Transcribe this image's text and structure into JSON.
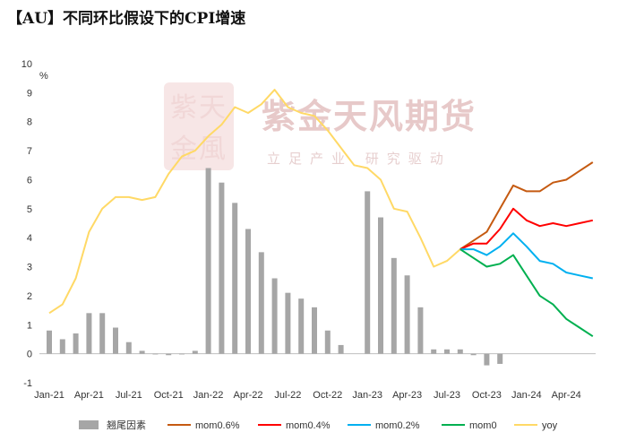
{
  "title": "【AU】不同环比假设下的CPI增速",
  "watermark": {
    "main": "紫金天风期货",
    "sub": "立足产业 研究驱动",
    "seal": [
      "紫",
      "天",
      "金",
      "風"
    ]
  },
  "chart_data": {
    "type": "bar+line",
    "ylabel": "%",
    "ylim": [
      -1,
      10
    ],
    "yticks": [
      -1,
      0,
      1,
      2,
      3,
      4,
      5,
      6,
      7,
      8,
      9,
      10
    ],
    "x_tick_labels": [
      {
        "label": "Jan-21",
        "index": 0
      },
      {
        "label": "Apr-21",
        "index": 3
      },
      {
        "label": "Jul-21",
        "index": 6
      },
      {
        "label": "Oct-21",
        "index": 9
      },
      {
        "label": "Jan-22",
        "index": 12
      },
      {
        "label": "Apr-22",
        "index": 15
      },
      {
        "label": "Jul-22",
        "index": 18
      },
      {
        "label": "Oct-22",
        "index": 21
      },
      {
        "label": "Jan-23",
        "index": 24
      },
      {
        "label": "Apr-23",
        "index": 27
      },
      {
        "label": "Jul-23",
        "index": 30
      },
      {
        "label": "Oct-23",
        "index": 33
      },
      {
        "label": "Jan-24",
        "index": 36
      },
      {
        "label": "Apr-24",
        "index": 39
      }
    ],
    "months": [
      "Jan-21",
      "Feb-21",
      "Mar-21",
      "Apr-21",
      "May-21",
      "Jun-21",
      "Jul-21",
      "Aug-21",
      "Sep-21",
      "Oct-21",
      "Nov-21",
      "Dec-21",
      "Jan-22",
      "Feb-22",
      "Mar-22",
      "Apr-22",
      "May-22",
      "Jun-22",
      "Jul-22",
      "Aug-22",
      "Sep-22",
      "Oct-22",
      "Nov-22",
      "Dec-22",
      "Jan-23",
      "Feb-23",
      "Mar-23",
      "Apr-23",
      "May-23",
      "Jun-23",
      "Jul-23",
      "Aug-23",
      "Sep-23",
      "Oct-23",
      "Nov-23",
      "Dec-23",
      "Jan-24",
      "Feb-24",
      "Mar-24",
      "Apr-24",
      "May-24",
      "Jun-24"
    ],
    "bars": {
      "name": "翘尾因素",
      "color": "#a6a6a6",
      "values": [
        0.8,
        0.5,
        0.7,
        1.4,
        1.4,
        0.9,
        0.4,
        0.1,
        0.0,
        -0.05,
        0.0,
        0.1,
        6.4,
        5.9,
        5.2,
        4.3,
        3.5,
        2.6,
        2.1,
        1.9,
        1.6,
        0.8,
        0.3,
        null,
        5.6,
        4.7,
        3.3,
        2.7,
        1.6,
        0.15,
        0.15,
        0.15,
        -0.05,
        -0.4,
        -0.35,
        null,
        null,
        null,
        null,
        null,
        null,
        null
      ]
    },
    "series": [
      {
        "name": "mom0.6%",
        "color": "#c55a11",
        "start_index": 31,
        "values": [
          3.6,
          3.9,
          4.2,
          5.0,
          5.8,
          5.6,
          5.6,
          5.9,
          6.0,
          6.3,
          6.6
        ]
      },
      {
        "name": "mom0.4%",
        "color": "#ff0000",
        "start_index": 31,
        "values": [
          3.6,
          3.8,
          3.8,
          4.3,
          5.0,
          4.6,
          4.4,
          4.5,
          4.4,
          4.5,
          4.6
        ]
      },
      {
        "name": "mom0.2%",
        "color": "#00b0f0",
        "start_index": 31,
        "values": [
          3.6,
          3.6,
          3.4,
          3.7,
          4.15,
          3.7,
          3.2,
          3.1,
          2.8,
          2.7,
          2.6
        ]
      },
      {
        "name": "mom0",
        "color": "#00b050",
        "start_index": 31,
        "values": [
          3.6,
          3.3,
          3.0,
          3.1,
          3.4,
          2.7,
          2.0,
          1.7,
          1.2,
          0.9,
          0.6
        ]
      },
      {
        "name": "yoy",
        "color": "#ffd966",
        "start_index": 0,
        "values": [
          1.4,
          1.7,
          2.6,
          4.2,
          5.0,
          5.4,
          5.4,
          5.3,
          5.4,
          6.2,
          6.8,
          7.0,
          7.5,
          7.9,
          8.5,
          8.3,
          8.6,
          9.1,
          8.5,
          8.3,
          8.2,
          7.7,
          7.1,
          6.5,
          6.4,
          6.0,
          5.0,
          4.9,
          4.0,
          3.0,
          3.2,
          3.6
        ]
      }
    ],
    "legend_position": "bottom",
    "grid": false
  }
}
